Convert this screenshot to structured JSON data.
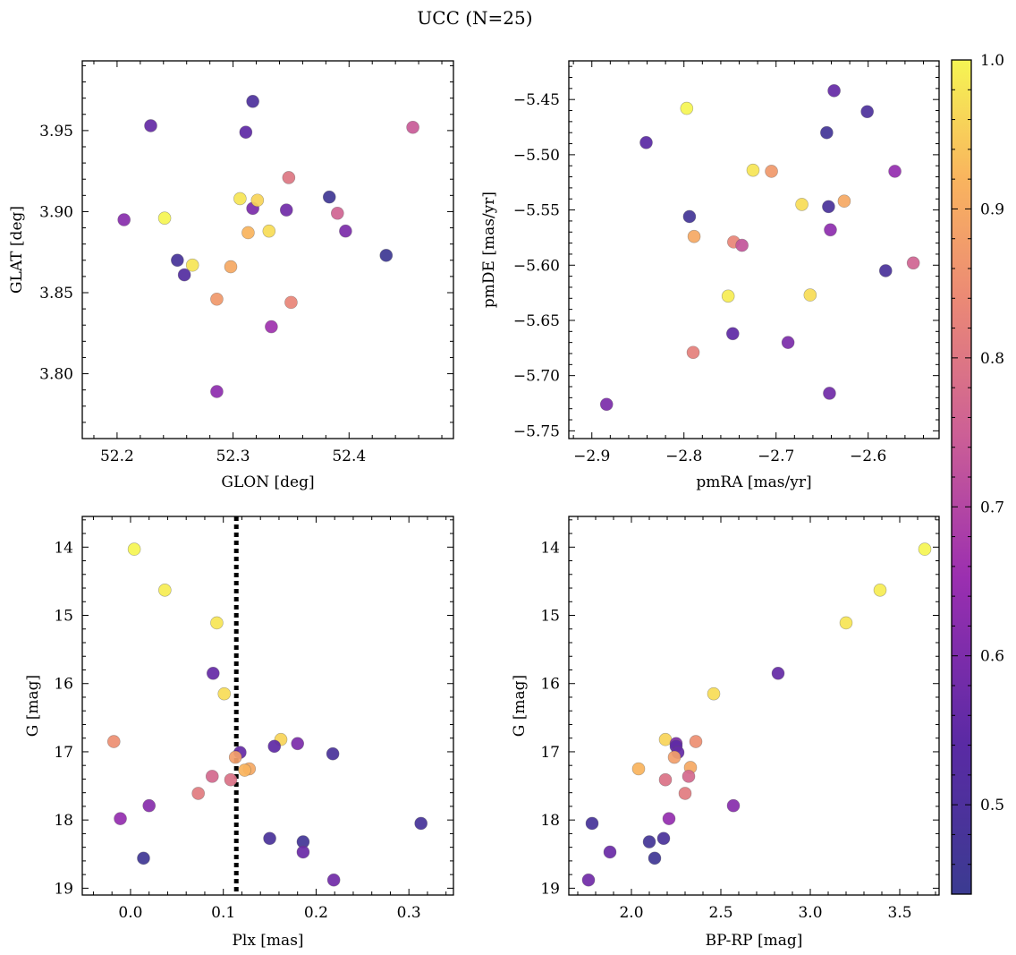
{
  "title": "UCC (N=25)",
  "colorbar": {
    "min": 0.44,
    "max": 1.0,
    "ticks": [
      0.5,
      0.6,
      0.7,
      0.8,
      0.9,
      1.0
    ],
    "tick_labels": [
      "0.5",
      "0.6",
      "0.7",
      "0.8",
      "0.9",
      "1.0"
    ],
    "colormap": "plasma"
  },
  "chart_data": [
    {
      "type": "scatter",
      "id": "glon-glat",
      "xlabel": "GLON [deg]",
      "ylabel": "GLAT [deg]",
      "xlim": [
        52.17,
        52.49
      ],
      "ylim": [
        3.76,
        3.993
      ],
      "y_inverted": false,
      "xticks": [
        52.2,
        52.3,
        52.4
      ],
      "xtick_labels": [
        "52.2",
        "52.3",
        "52.4"
      ],
      "yticks": [
        3.8,
        3.85,
        3.9,
        3.95
      ],
      "ytick_labels": [
        "3.80",
        "3.85",
        "3.90",
        "3.95"
      ],
      "points": [
        {
          "x": 52.229,
          "y": 3.953,
          "c": 0.56
        },
        {
          "x": 52.206,
          "y": 3.895,
          "c": 0.62
        },
        {
          "x": 52.241,
          "y": 3.896,
          "c": 1.0
        },
        {
          "x": 52.252,
          "y": 3.87,
          "c": 0.48
        },
        {
          "x": 52.258,
          "y": 3.861,
          "c": 0.52
        },
        {
          "x": 52.265,
          "y": 3.867,
          "c": 0.98
        },
        {
          "x": 52.286,
          "y": 3.846,
          "c": 0.87
        },
        {
          "x": 52.286,
          "y": 3.789,
          "c": 0.63
        },
        {
          "x": 52.298,
          "y": 3.866,
          "c": 0.9
        },
        {
          "x": 52.306,
          "y": 3.908,
          "c": 0.98
        },
        {
          "x": 52.311,
          "y": 3.949,
          "c": 0.55
        },
        {
          "x": 52.313,
          "y": 3.887,
          "c": 0.92
        },
        {
          "x": 52.317,
          "y": 3.968,
          "c": 0.5
        },
        {
          "x": 52.317,
          "y": 3.902,
          "c": 0.6
        },
        {
          "x": 52.321,
          "y": 3.907,
          "c": 0.96
        },
        {
          "x": 52.331,
          "y": 3.888,
          "c": 0.97
        },
        {
          "x": 52.333,
          "y": 3.829,
          "c": 0.66
        },
        {
          "x": 52.346,
          "y": 3.901,
          "c": 0.58
        },
        {
          "x": 52.348,
          "y": 3.921,
          "c": 0.8
        },
        {
          "x": 52.35,
          "y": 3.844,
          "c": 0.83
        },
        {
          "x": 52.383,
          "y": 3.909,
          "c": 0.46
        },
        {
          "x": 52.39,
          "y": 3.899,
          "c": 0.76
        },
        {
          "x": 52.397,
          "y": 3.888,
          "c": 0.6
        },
        {
          "x": 52.432,
          "y": 3.873,
          "c": 0.45
        },
        {
          "x": 52.455,
          "y": 3.952,
          "c": 0.74
        }
      ]
    },
    {
      "type": "scatter",
      "id": "pmra-pmde",
      "xlabel": "pmRA [mas/yr]",
      "ylabel": "pmDE [mas/yr]",
      "xlim": [
        -2.925,
        -2.523
      ],
      "ylim": [
        -5.757,
        -5.415
      ],
      "y_inverted": false,
      "xticks": [
        -2.9,
        -2.8,
        -2.7,
        -2.6
      ],
      "xtick_labels": [
        "−2.9",
        "−2.8",
        "−2.7",
        "−2.6"
      ],
      "yticks": [
        -5.75,
        -5.7,
        -5.65,
        -5.6,
        -5.55,
        -5.5,
        -5.45
      ],
      "ytick_labels": [
        "−5.75",
        "−5.70",
        "−5.65",
        "−5.60",
        "−5.55",
        "−5.50",
        "−5.45"
      ],
      "points": [
        {
          "x": -2.637,
          "y": -5.442,
          "c": 0.56
        },
        {
          "x": -2.797,
          "y": -5.458,
          "c": 1.0
        },
        {
          "x": -2.601,
          "y": -5.461,
          "c": 0.5
        },
        {
          "x": -2.645,
          "y": -5.48,
          "c": 0.47
        },
        {
          "x": -2.841,
          "y": -5.489,
          "c": 0.54
        },
        {
          "x": -2.725,
          "y": -5.514,
          "c": 0.98
        },
        {
          "x": -2.705,
          "y": -5.515,
          "c": 0.87
        },
        {
          "x": -2.571,
          "y": -5.515,
          "c": 0.64
        },
        {
          "x": -2.672,
          "y": -5.545,
          "c": 0.97
        },
        {
          "x": -2.626,
          "y": -5.542,
          "c": 0.9
        },
        {
          "x": -2.643,
          "y": -5.547,
          "c": 0.49
        },
        {
          "x": -2.794,
          "y": -5.556,
          "c": 0.47
        },
        {
          "x": -2.641,
          "y": -5.568,
          "c": 0.63
        },
        {
          "x": -2.789,
          "y": -5.574,
          "c": 0.9
        },
        {
          "x": -2.746,
          "y": -5.579,
          "c": 0.83
        },
        {
          "x": -2.737,
          "y": -5.582,
          "c": 0.73
        },
        {
          "x": -2.551,
          "y": -5.598,
          "c": 0.76
        },
        {
          "x": -2.581,
          "y": -5.605,
          "c": 0.49
        },
        {
          "x": -2.752,
          "y": -5.628,
          "c": 0.99
        },
        {
          "x": -2.663,
          "y": -5.627,
          "c": 0.97
        },
        {
          "x": -2.747,
          "y": -5.662,
          "c": 0.55
        },
        {
          "x": -2.687,
          "y": -5.67,
          "c": 0.6
        },
        {
          "x": -2.79,
          "y": -5.679,
          "c": 0.82
        },
        {
          "x": -2.642,
          "y": -5.716,
          "c": 0.58
        },
        {
          "x": -2.884,
          "y": -5.726,
          "c": 0.6
        }
      ]
    },
    {
      "type": "scatter",
      "id": "plx-g",
      "xlabel": "Plx [mas]",
      "ylabel": "G [mag]",
      "xlim": [
        -0.052,
        0.348
      ],
      "ylim": [
        19.1,
        13.55
      ],
      "y_inverted": true,
      "vline": {
        "x": 0.114,
        "style": "dotted"
      },
      "xticks": [
        0.0,
        0.1,
        0.2,
        0.3
      ],
      "xtick_labels": [
        "0.0",
        "0.1",
        "0.2",
        "0.3"
      ],
      "yticks": [
        14,
        15,
        16,
        17,
        18,
        19
      ],
      "ytick_labels": [
        "14",
        "15",
        "16",
        "17",
        "18",
        "19"
      ],
      "points": [
        {
          "x": 0.004,
          "y": 14.03,
          "c": 1.0
        },
        {
          "x": 0.037,
          "y": 14.63,
          "c": 0.99
        },
        {
          "x": 0.093,
          "y": 15.11,
          "c": 0.98
        },
        {
          "x": 0.089,
          "y": 15.85,
          "c": 0.56
        },
        {
          "x": 0.101,
          "y": 16.15,
          "c": 0.97
        },
        {
          "x": -0.018,
          "y": 16.85,
          "c": 0.85
        },
        {
          "x": 0.162,
          "y": 16.82,
          "c": 0.96
        },
        {
          "x": 0.18,
          "y": 16.88,
          "c": 0.6
        },
        {
          "x": 0.155,
          "y": 16.92,
          "c": 0.55
        },
        {
          "x": 0.118,
          "y": 17.01,
          "c": 0.56
        },
        {
          "x": 0.218,
          "y": 17.03,
          "c": 0.49
        },
        {
          "x": 0.113,
          "y": 17.08,
          "c": 0.88
        },
        {
          "x": 0.128,
          "y": 17.25,
          "c": 0.9
        },
        {
          "x": 0.123,
          "y": 17.27,
          "c": 0.92
        },
        {
          "x": 0.088,
          "y": 17.36,
          "c": 0.77
        },
        {
          "x": 0.108,
          "y": 17.41,
          "c": 0.79
        },
        {
          "x": 0.073,
          "y": 17.61,
          "c": 0.81
        },
        {
          "x": 0.02,
          "y": 17.79,
          "c": 0.62
        },
        {
          "x": -0.011,
          "y": 17.98,
          "c": 0.64
        },
        {
          "x": 0.313,
          "y": 18.05,
          "c": 0.48
        },
        {
          "x": 0.15,
          "y": 18.27,
          "c": 0.49
        },
        {
          "x": 0.186,
          "y": 18.32,
          "c": 0.47
        },
        {
          "x": 0.186,
          "y": 18.47,
          "c": 0.57
        },
        {
          "x": 0.014,
          "y": 18.56,
          "c": 0.46
        },
        {
          "x": 0.219,
          "y": 18.88,
          "c": 0.58
        }
      ]
    },
    {
      "type": "scatter",
      "id": "bprp-g",
      "xlabel": "BP-RP [mag]",
      "ylabel": "G [mag]",
      "xlim": [
        1.65,
        3.72
      ],
      "ylim": [
        19.1,
        13.55
      ],
      "y_inverted": true,
      "xticks": [
        2.0,
        2.5,
        3.0,
        3.5
      ],
      "xtick_labels": [
        "2.0",
        "2.5",
        "3.0",
        "3.5"
      ],
      "yticks": [
        14,
        15,
        16,
        17,
        18,
        19
      ],
      "ytick_labels": [
        "14",
        "15",
        "16",
        "17",
        "18",
        "19"
      ],
      "points": [
        {
          "x": 3.64,
          "y": 14.03,
          "c": 1.0
        },
        {
          "x": 3.39,
          "y": 14.63,
          "c": 0.99
        },
        {
          "x": 3.2,
          "y": 15.11,
          "c": 0.98
        },
        {
          "x": 2.82,
          "y": 15.85,
          "c": 0.56
        },
        {
          "x": 2.46,
          "y": 16.15,
          "c": 0.97
        },
        {
          "x": 2.19,
          "y": 16.82,
          "c": 0.96
        },
        {
          "x": 2.36,
          "y": 16.85,
          "c": 0.85
        },
        {
          "x": 2.25,
          "y": 16.88,
          "c": 0.6
        },
        {
          "x": 2.25,
          "y": 16.92,
          "c": 0.55
        },
        {
          "x": 2.26,
          "y": 17.01,
          "c": 0.56
        },
        {
          "x": 2.24,
          "y": 17.08,
          "c": 0.88
        },
        {
          "x": 2.04,
          "y": 17.25,
          "c": 0.92
        },
        {
          "x": 2.33,
          "y": 17.23,
          "c": 0.9
        },
        {
          "x": 2.32,
          "y": 17.36,
          "c": 0.77
        },
        {
          "x": 2.19,
          "y": 17.41,
          "c": 0.79
        },
        {
          "x": 2.3,
          "y": 17.61,
          "c": 0.81
        },
        {
          "x": 2.57,
          "y": 17.79,
          "c": 0.62
        },
        {
          "x": 2.21,
          "y": 17.98,
          "c": 0.64
        },
        {
          "x": 1.78,
          "y": 18.05,
          "c": 0.48
        },
        {
          "x": 2.18,
          "y": 18.27,
          "c": 0.49
        },
        {
          "x": 2.1,
          "y": 18.32,
          "c": 0.47
        },
        {
          "x": 1.88,
          "y": 18.47,
          "c": 0.57
        },
        {
          "x": 2.13,
          "y": 18.56,
          "c": 0.46
        },
        {
          "x": 1.76,
          "y": 18.88,
          "c": 0.58
        }
      ]
    }
  ]
}
